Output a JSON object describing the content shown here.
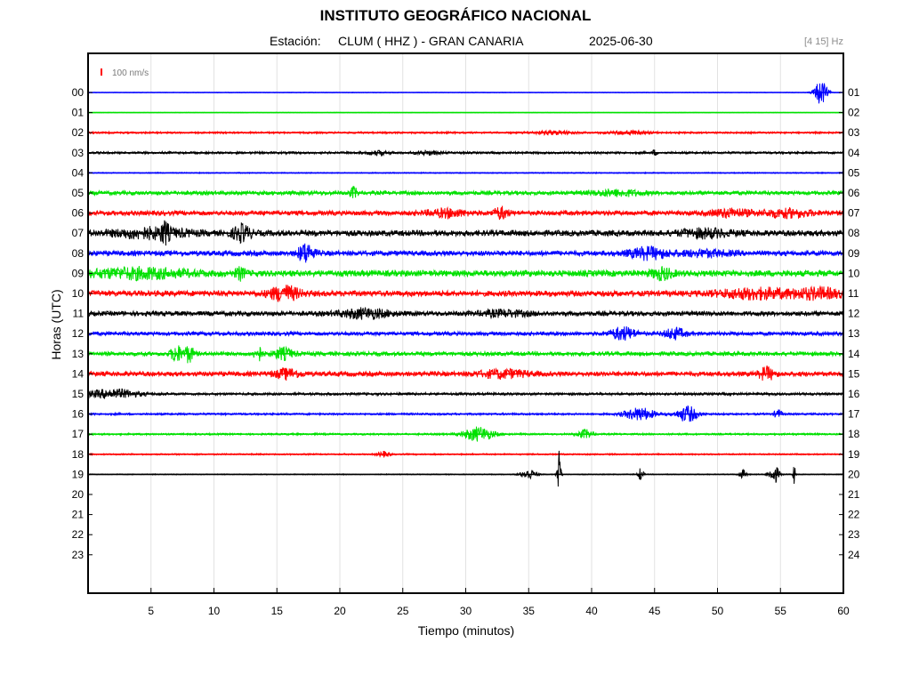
{
  "chart_data": {
    "type": "line",
    "title": "INSTITUTO GEOGRÁFICO NACIONAL",
    "station_label": "Estación:",
    "station": "CLUM ( HHZ ) - GRAN CANARIA",
    "date": "2025-06-30",
    "filter": "[4 15] Hz",
    "scale_label": "100 nm/s",
    "scale_color": "#ff0000",
    "xlabel": "Tiempo (minutos)",
    "ylabel": "Horas (UTC)",
    "xlim": [
      0,
      60
    ],
    "x_ticks": [
      5,
      10,
      15,
      20,
      25,
      30,
      35,
      40,
      45,
      50,
      55,
      60
    ],
    "grid": true,
    "left_hour_labels": [
      "00",
      "01",
      "02",
      "03",
      "04",
      "05",
      "06",
      "07",
      "08",
      "09",
      "10",
      "11",
      "12",
      "13",
      "14",
      "15",
      "16",
      "17",
      "18",
      "19",
      "20",
      "21",
      "22",
      "23"
    ],
    "right_hour_labels": [
      "01",
      "02",
      "03",
      "04",
      "05",
      "06",
      "07",
      "08",
      "09",
      "10",
      "11",
      "12",
      "13",
      "14",
      "15",
      "16",
      "17",
      "18",
      "19",
      "20",
      "21",
      "22",
      "23",
      "24"
    ],
    "trace_colors": [
      "#0000ff",
      "#00e000",
      "#ff0000",
      "#000000"
    ],
    "series": [
      {
        "hour": "00",
        "color": "#0000ff",
        "noise": 0.3,
        "events": [
          [
            58.2,
            14,
            0.5
          ]
        ]
      },
      {
        "hour": "01",
        "color": "#00e000",
        "noise": 0.3,
        "events": []
      },
      {
        "hour": "02",
        "color": "#ff0000",
        "noise": 1.0,
        "events": [
          [
            37,
            2,
            1.5
          ],
          [
            43,
            2,
            1.5
          ]
        ]
      },
      {
        "hour": "03",
        "color": "#000000",
        "noise": 1.2,
        "events": [
          [
            23,
            2,
            1
          ],
          [
            27,
            2,
            1
          ],
          [
            45,
            3,
            0.2
          ]
        ]
      },
      {
        "hour": "04",
        "color": "#0000ff",
        "noise": 0.6,
        "events": []
      },
      {
        "hour": "05",
        "color": "#00e000",
        "noise": 2.2,
        "events": [
          [
            21.1,
            6,
            0.3
          ],
          [
            42,
            3,
            2
          ]
        ]
      },
      {
        "hour": "06",
        "color": "#ff0000",
        "noise": 2.6,
        "events": [
          [
            28.5,
            4,
            1.5
          ],
          [
            32.8,
            6,
            0.6
          ],
          [
            51,
            4,
            1.5
          ],
          [
            55.5,
            4,
            2
          ]
        ]
      },
      {
        "hour": "07",
        "color": "#000000",
        "noise": 3.2,
        "events": [
          [
            5,
            5,
            3
          ],
          [
            6.1,
            9,
            0.3
          ],
          [
            12.2,
            9,
            0.7
          ],
          [
            49,
            4,
            2
          ]
        ]
      },
      {
        "hour": "08",
        "color": "#0000ff",
        "noise": 2.8,
        "events": [
          [
            17.3,
            11,
            0.6
          ],
          [
            44.5,
            6,
            1.5
          ],
          [
            49,
            3,
            2
          ]
        ]
      },
      {
        "hour": "09",
        "color": "#00e000",
        "noise": 3.4,
        "events": [
          [
            4,
            5,
            4
          ],
          [
            12.1,
            6,
            0.4
          ],
          [
            45.6,
            6,
            0.8
          ]
        ]
      },
      {
        "hour": "10",
        "color": "#ff0000",
        "noise": 3.1,
        "events": [
          [
            15.6,
            8,
            1.2
          ],
          [
            53,
            5,
            3
          ],
          [
            58,
            5,
            2
          ]
        ]
      },
      {
        "hour": "11",
        "color": "#000000",
        "noise": 2.6,
        "events": [
          [
            22,
            5,
            2
          ],
          [
            33,
            3,
            2
          ]
        ]
      },
      {
        "hour": "12",
        "color": "#0000ff",
        "noise": 2.1,
        "events": [
          [
            42.5,
            7,
            1
          ],
          [
            46.6,
            6,
            0.8
          ]
        ]
      },
      {
        "hour": "13",
        "color": "#00e000",
        "noise": 2.3,
        "events": [
          [
            7,
            10,
            0.4
          ],
          [
            8,
            9,
            0.4
          ],
          [
            15.5,
            6,
            0.8
          ],
          [
            13.5,
            9,
            0.3
          ]
        ]
      },
      {
        "hour": "14",
        "color": "#ff0000",
        "noise": 2.6,
        "events": [
          [
            15.8,
            5,
            1
          ],
          [
            33,
            4,
            2
          ],
          [
            53.9,
            7,
            0.6
          ]
        ]
      },
      {
        "hour": "15",
        "color": "#000000",
        "noise": 1.4,
        "events": [
          [
            2,
            5,
            2
          ]
        ]
      },
      {
        "hour": "16",
        "color": "#0000ff",
        "noise": 1.1,
        "events": [
          [
            43.8,
            7,
            1.2
          ],
          [
            47.6,
            9,
            0.8
          ],
          [
            54.8,
            5,
            0.3
          ]
        ]
      },
      {
        "hour": "17",
        "color": "#00e000",
        "noise": 1.0,
        "events": [
          [
            31,
            8,
            1.2
          ],
          [
            39.5,
            5,
            0.6
          ]
        ]
      },
      {
        "hour": "18",
        "color": "#ff0000",
        "noise": 0.8,
        "events": [
          [
            23.5,
            3,
            0.5
          ]
        ]
      },
      {
        "hour": "19",
        "color": "#000000",
        "noise": 0.5,
        "events": [
          [
            37.4,
            28,
            0.15
          ],
          [
            35,
            6,
            0.6
          ],
          [
            43.9,
            8,
            0.2
          ],
          [
            54.5,
            10,
            0.4
          ],
          [
            56.1,
            12,
            0.1
          ],
          [
            52,
            5,
            0.3
          ]
        ]
      }
    ]
  }
}
